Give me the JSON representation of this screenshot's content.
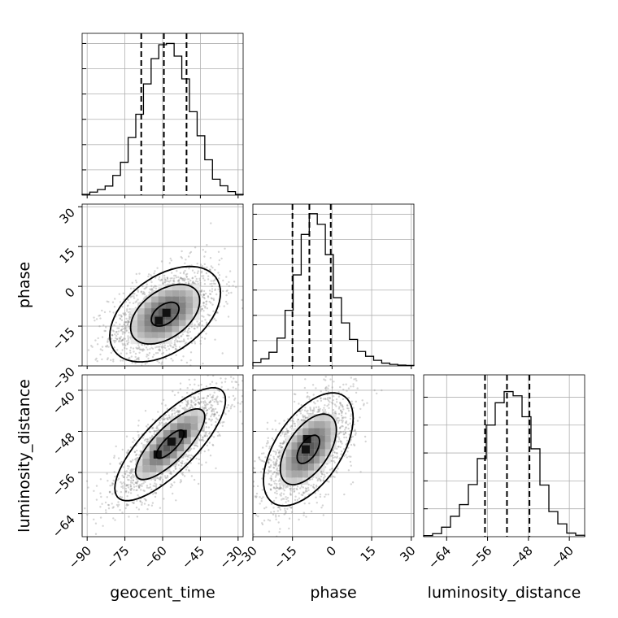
{
  "chart_data": {
    "type": "corner",
    "parameters": [
      {
        "key": "geocent_time",
        "label": "geocent_time",
        "range": [
          -92,
          -28
        ],
        "ticks": [
          -90,
          -75,
          -60,
          -45,
          -30
        ],
        "tick_labels": [
          "−90",
          "−75",
          "−60",
          "−45",
          "−30"
        ],
        "quantiles": [
          -68.5,
          -59.5,
          -50.5
        ],
        "hist": {
          "edges": [
            -92,
            -28
          ],
          "counts": [
            0.3,
            1.2,
            2.2,
            3.6,
            7.8,
            13,
            22.8,
            32,
            44,
            54,
            59.5,
            60,
            55,
            46,
            33,
            23.5,
            14,
            6.3,
            3.7,
            1.4,
            0.3
          ]
        },
        "hist_ylim": [
          0,
          64
        ]
      },
      {
        "key": "phase",
        "label": "phase",
        "range": [
          -30,
          31
        ],
        "ticks": [
          -30,
          -15,
          0,
          15,
          30
        ],
        "tick_labels": [
          "−30",
          "−15",
          "0",
          "15",
          "30"
        ],
        "quantiles": [
          -15,
          -8.6,
          -0.5
        ],
        "hist": {
          "edges": [
            -30,
            31
          ],
          "counts": [
            1.4,
            2.8,
            5.4,
            11,
            22,
            36,
            52,
            60.2,
            56,
            44,
            27,
            17,
            10.5,
            5.7,
            3.8,
            2.2,
            1.1,
            0.6,
            0.3,
            0.2
          ]
        },
        "hist_ylim": [
          0,
          64
        ]
      },
      {
        "key": "luminosity_distance",
        "label": "luminosity_distance",
        "range": [
          -68.5,
          -37
        ],
        "ticks": [
          -64,
          -56,
          -48,
          -40
        ],
        "tick_labels": [
          "−64",
          "−56",
          "−48",
          "−40"
        ],
        "quantiles": [
          -56.5,
          -52.2,
          -47.8
        ],
        "hist": {
          "edges": [
            -68.5,
            -37
          ],
          "counts": [
            0.4,
            1.1,
            3.4,
            7.3,
            11.5,
            18.7,
            28,
            40,
            48,
            52,
            50.5,
            43,
            31.5,
            18.5,
            9,
            4.6,
            1.3,
            0.5
          ]
        },
        "hist_ylim": [
          0,
          58
        ]
      }
    ],
    "panels": [
      {
        "row": 1,
        "col": 0,
        "x": "geocent_time",
        "y": "phase",
        "center": [
          -59,
          -10.5
        ],
        "sd": [
          11,
          9
        ],
        "rho": 0.45,
        "peaks": [
          [
            -58.5,
            -10
          ],
          [
            -61.5,
            -13
          ]
        ]
      },
      {
        "row": 2,
        "col": 0,
        "x": "geocent_time",
        "y": "luminosity_distance",
        "center": [
          -57,
          -50.5
        ],
        "sd": [
          11,
          5.5
        ],
        "rho": 0.78,
        "peaks": [
          [
            -62,
            -52.5
          ],
          [
            -56.5,
            -50
          ],
          [
            -52,
            -48.5
          ]
        ]
      },
      {
        "row": 2,
        "col": 1,
        "x": "phase",
        "y": "luminosity_distance",
        "center": [
          -9,
          -51.5
        ],
        "sd": [
          8.5,
          5.5
        ],
        "rho": 0.55,
        "peaks": [
          [
            -9.5,
            -49.5
          ],
          [
            -10,
            -51.5
          ]
        ]
      }
    ],
    "contour_levels": [
      "1-sigma",
      "2-sigma",
      "3-sigma"
    ],
    "grid": true,
    "quantile_style": "dashed"
  }
}
